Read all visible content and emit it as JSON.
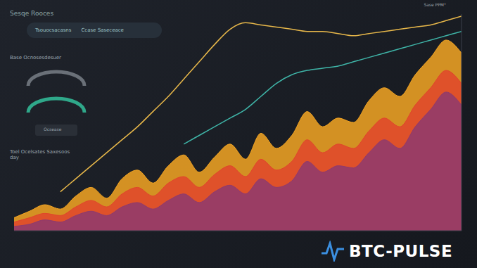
{
  "chart_data": {
    "type": "area",
    "title": "Sesqe Rooces",
    "subtitle": "Toel Ocelsates Saxesoos day",
    "annotations": [
      "Tsouocsacasns",
      "Ccase Saseceace",
      "Base Ocnosesdesuer",
      "Ocsease",
      "Sase PPM°",
      "BTC-PULSE"
    ],
    "x": [
      0,
      1,
      2,
      3,
      4,
      5,
      6,
      7,
      8,
      9,
      10,
      11,
      12,
      13,
      14,
      15,
      16,
      17,
      18,
      19,
      20,
      21,
      22,
      23,
      24,
      25,
      26,
      27,
      28,
      29
    ],
    "xlim": [
      0,
      29
    ],
    "ylim": [
      0,
      100
    ],
    "tick_labels": false,
    "grid": false,
    "series": [
      {
        "type": "area",
        "color": "#f5a623",
        "values": [
          6,
          9,
          12,
          10,
          16,
          20,
          15,
          24,
          28,
          22,
          30,
          35,
          27,
          34,
          40,
          33,
          45,
          38,
          44,
          55,
          48,
          52,
          50,
          60,
          66,
          62,
          72,
          80,
          88,
          82
        ]
      },
      {
        "type": "area",
        "color": "#e0452b",
        "values": [
          4,
          6,
          8,
          7,
          11,
          14,
          11,
          17,
          20,
          16,
          22,
          25,
          20,
          26,
          30,
          25,
          33,
          28,
          32,
          42,
          36,
          40,
          38,
          46,
          52,
          48,
          58,
          66,
          74,
          68
        ]
      },
      {
        "type": "area",
        "color": "#8e3a6e",
        "values": [
          2,
          3,
          5,
          4,
          7,
          9,
          7,
          11,
          13,
          10,
          14,
          17,
          13,
          18,
          21,
          17,
          24,
          20,
          23,
          32,
          27,
          30,
          29,
          36,
          42,
          38,
          48,
          56,
          64,
          58
        ]
      },
      {
        "type": "line",
        "color": "#e8b84a",
        "values": [
          null,
          null,
          null,
          18,
          24,
          30,
          36,
          42,
          48,
          55,
          62,
          70,
          78,
          86,
          93,
          96,
          95,
          94,
          93,
          92,
          92,
          91,
          90,
          91,
          92,
          93,
          94,
          95,
          97,
          99
        ]
      },
      {
        "type": "line",
        "color": "#3fb5a8",
        "values": [
          null,
          null,
          null,
          null,
          null,
          null,
          null,
          null,
          null,
          null,
          null,
          40,
          44,
          48,
          52,
          56,
          62,
          68,
          72,
          74,
          75,
          76,
          78,
          80,
          82,
          84,
          86,
          88,
          90,
          92
        ]
      }
    ]
  }
}
